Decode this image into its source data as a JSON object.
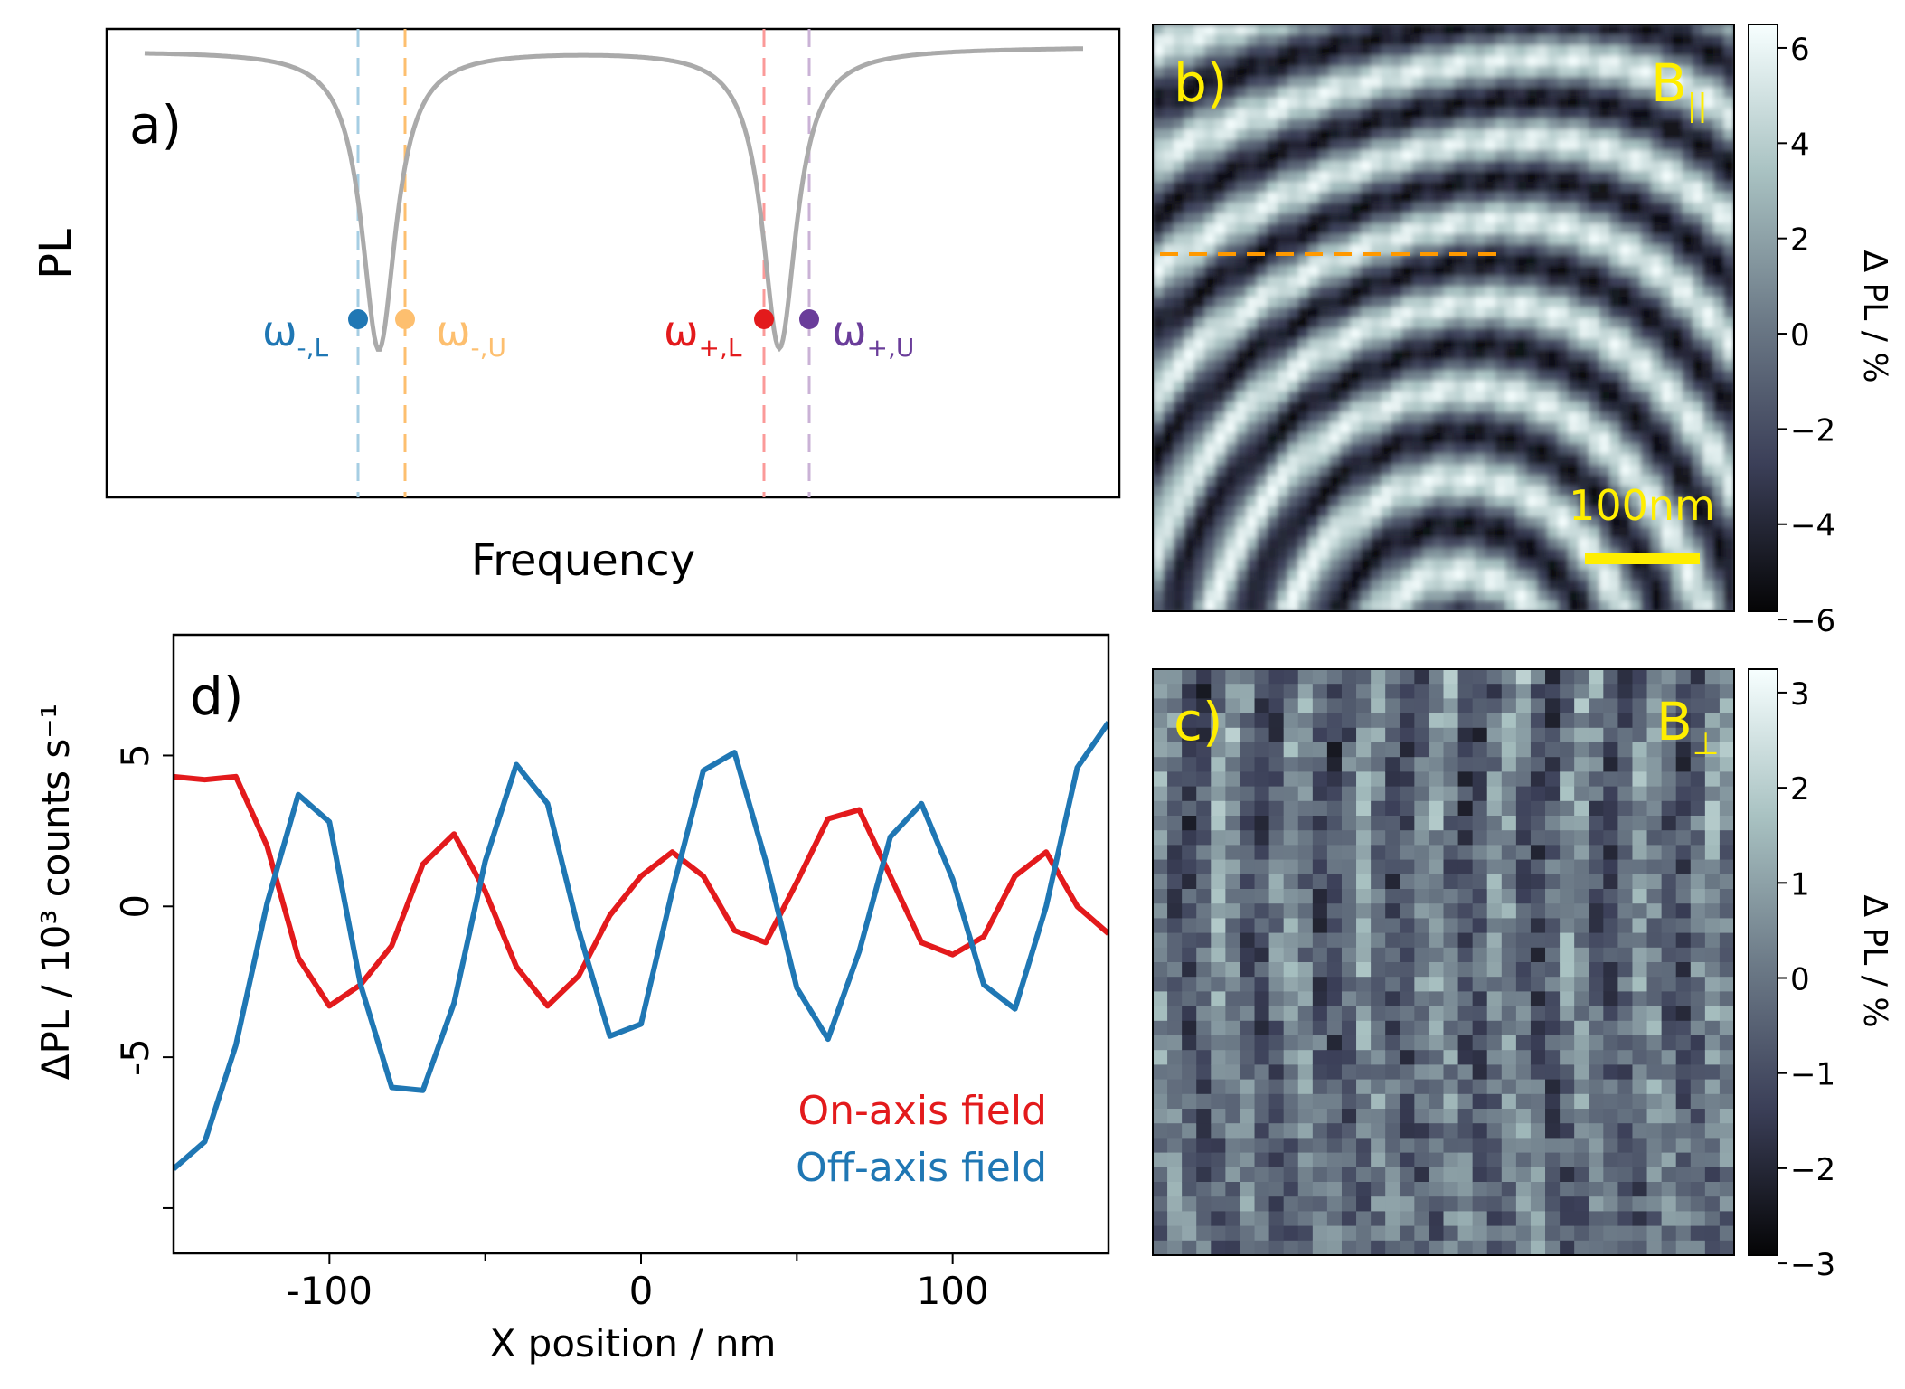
{
  "colors": {
    "axis": "#000000",
    "pl_curve": "#aaaaaa",
    "blue": "#1f77b4",
    "light_blue": "#a6cee3",
    "orange": "#fdbf6f",
    "red": "#e31a1c",
    "light_red": "#fb9a99",
    "purple": "#6a3d9a",
    "light_purple": "#cab2d6",
    "yellow": "#ffee00",
    "dashed_orange": "#ff9900"
  },
  "panel_a": {
    "label": "a)",
    "ylabel": "PL",
    "xlabel": "Frequency",
    "markers": [
      {
        "name": "ω",
        "sub": "-,L",
        "color_key": "blue",
        "line_color_key": "light_blue"
      },
      {
        "name": "ω",
        "sub": "-,U",
        "color_key": "orange",
        "line_color_key": "orange"
      },
      {
        "name": "ω",
        "sub": "+,L",
        "color_key": "red",
        "line_color_key": "light_red"
      },
      {
        "name": "ω",
        "sub": "+,U",
        "color_key": "purple",
        "line_color_key": "light_purple"
      }
    ]
  },
  "panel_b": {
    "label": "b)",
    "field_label": "B",
    "field_sub": "||",
    "scalebar_label": "100nm",
    "colorbar_label": "Δ PL / %",
    "colorbar_ticks": [
      "6",
      "4",
      "2",
      "0",
      "−2",
      "−4",
      "−6"
    ]
  },
  "panel_c": {
    "label": "c)",
    "field_label": "B",
    "field_sub": "⊥",
    "colorbar_label": "Δ PL / %",
    "colorbar_ticks": [
      "3",
      "2",
      "1",
      "0",
      "−1",
      "−2",
      "−3"
    ]
  },
  "chart_data": [
    {
      "type": "line",
      "panel": "d)",
      "xlabel": "X position / nm",
      "ylabel": "ΔPL / 10³ counts s⁻¹",
      "xlim": [
        -150,
        150
      ],
      "ylim": [
        -11.5,
        9
      ],
      "xticks": [
        -100,
        0,
        100
      ],
      "xtick_labels": [
        "-100",
        "0",
        "100"
      ],
      "yticks": [
        5,
        0,
        -5,
        -10
      ],
      "ytick_labels": [
        "5",
        "0",
        "-5",
        ""
      ],
      "x": [
        -150,
        -140,
        -130,
        -120,
        -110,
        -100,
        -90,
        -80,
        -70,
        -60,
        -50,
        -40,
        -30,
        -20,
        -10,
        0,
        10,
        20,
        30,
        40,
        50,
        60,
        70,
        80,
        90,
        100,
        110,
        120,
        130,
        140,
        150
      ],
      "series": [
        {
          "name": "On-axis field",
          "color_key": "red",
          "values": [
            4.3,
            4.2,
            4.3,
            2.0,
            -1.7,
            -3.3,
            -2.6,
            -1.3,
            1.4,
            2.4,
            0.5,
            -2.0,
            -3.3,
            -2.3,
            -0.3,
            1.0,
            1.8,
            1.0,
            -0.8,
            -1.2,
            0.8,
            2.9,
            3.2,
            1.0,
            -1.2,
            -1.6,
            -1.0,
            1.0,
            1.8,
            0.0,
            -0.9
          ]
        },
        {
          "name": "Off-axis field",
          "color_key": "blue",
          "values": [
            -8.7,
            -7.8,
            -4.6,
            0.1,
            3.7,
            2.8,
            -2.6,
            -6.0,
            -6.1,
            -3.2,
            1.5,
            4.7,
            3.4,
            -0.8,
            -4.3,
            -3.9,
            0.5,
            4.5,
            5.1,
            1.5,
            -2.7,
            -4.4,
            -1.5,
            2.3,
            3.4,
            0.9,
            -2.6,
            -3.4,
            0.0,
            4.6,
            6.1
          ]
        }
      ]
    }
  ]
}
